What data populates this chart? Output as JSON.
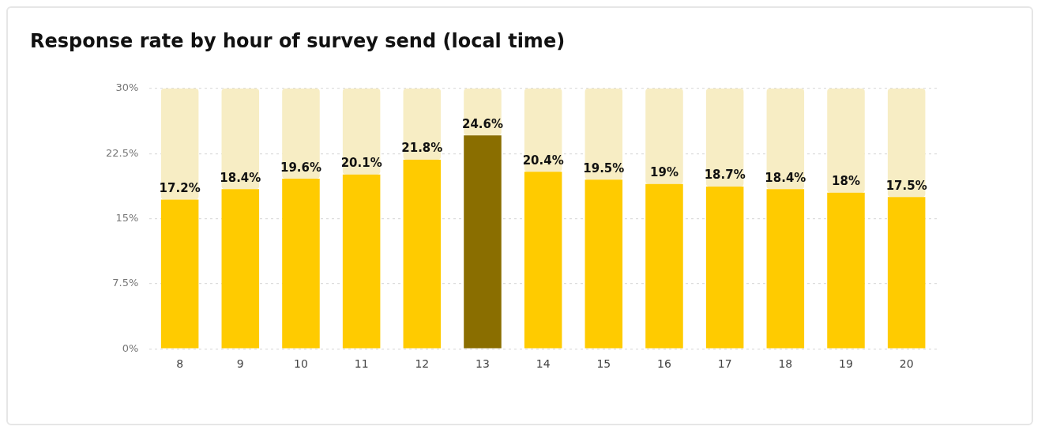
{
  "chart_data": {
    "type": "bar",
    "title": "Response rate by hour of survey send (local time)",
    "categories": [
      "8",
      "9",
      "10",
      "11",
      "12",
      "13",
      "14",
      "15",
      "16",
      "17",
      "18",
      "19",
      "20"
    ],
    "stacked": true,
    "series": [
      {
        "colors": [
          "#ffcb00",
          "#ffcb00",
          "#ffcb00",
          "#ffcb00",
          "#ffcb00",
          "#8a6e00",
          "#ffcb00",
          "#ffcb00",
          "#ffcb00",
          "#ffcb00",
          "#ffcb00",
          "#ffcb00",
          "#ffcb00"
        ],
        "values": [
          17.2,
          18.4,
          19.6,
          20.1,
          21.8,
          24.6,
          20.4,
          19.5,
          19,
          18.7,
          18.4,
          18,
          17.5
        ],
        "value_labels": [
          "17.2%",
          "18.4%",
          "19.6%",
          "20.1%",
          "21.8%",
          "24.6%",
          "20.4%",
          "19.5%",
          "19%",
          "18.7%",
          "18.4%",
          "18%",
          "17.5%"
        ]
      },
      {
        "color": "#f7edc4",
        "values": [
          12.8,
          11.6,
          10.4,
          9.9,
          8.2,
          5.4,
          9.6,
          10.5,
          11,
          11.3,
          11.6,
          12,
          12.5
        ]
      }
    ],
    "ylim": [
      0,
      30
    ],
    "yticks": [
      {
        "value": 0,
        "label": "0%"
      },
      {
        "value": 7.5,
        "label": "7.5%"
      },
      {
        "value": 15,
        "label": "15%"
      },
      {
        "value": 22.5,
        "label": "22.5%"
      },
      {
        "value": 30,
        "label": "30%"
      }
    ],
    "grid": "y",
    "legend": false
  }
}
